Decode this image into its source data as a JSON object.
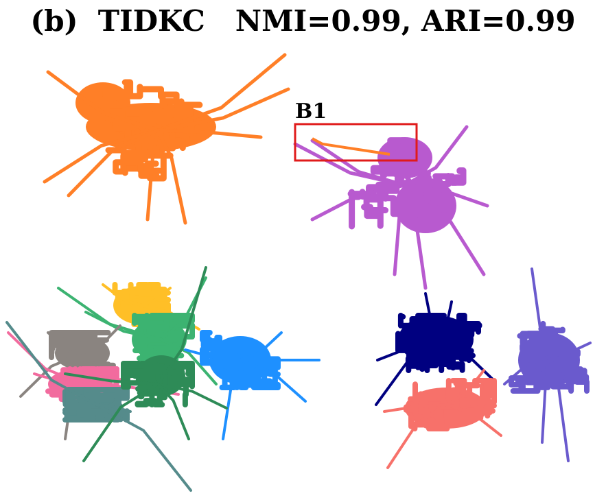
{
  "chart_data": {
    "type": "scatter",
    "title": "(b)  TIDKC   NMI=0.99, ARI=0.99",
    "xlabel": "",
    "ylabel": "",
    "grid": false,
    "legend": "none",
    "clusters": [
      {
        "color": "#FF7F27"
      },
      {
        "color": "#B85ACF"
      },
      {
        "color": "#000080"
      },
      {
        "color": "#6A5ACD"
      },
      {
        "color": "#F7716A"
      },
      {
        "color": "#FFBF27"
      },
      {
        "color": "#3CB371"
      },
      {
        "color": "#8A8480"
      },
      {
        "color": "#1E90FF"
      },
      {
        "color": "#F26B9E"
      },
      {
        "color": "#558B8B"
      },
      {
        "color": "#2E8B57"
      }
    ],
    "annotations": [
      {
        "label": "B1",
        "box_color": "#E01B1B"
      }
    ]
  }
}
